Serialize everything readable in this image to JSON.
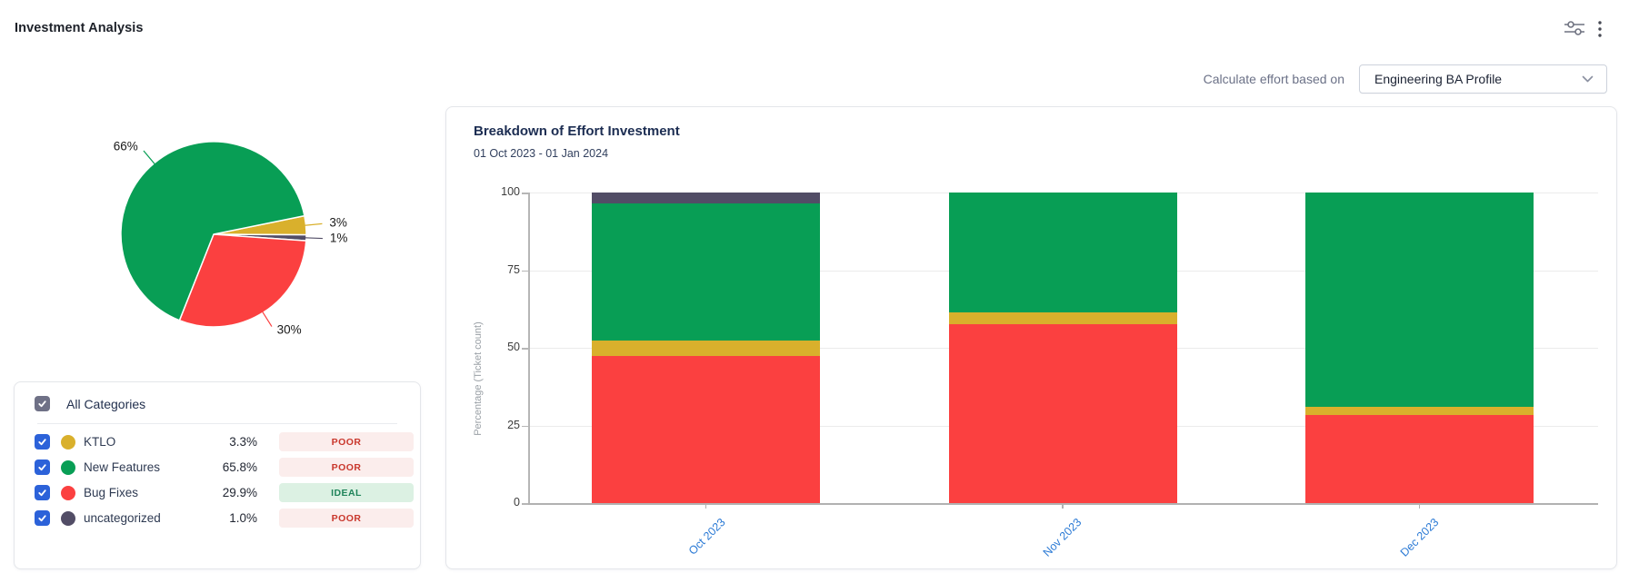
{
  "page": {
    "title": "Investment Analysis"
  },
  "header_icons": {
    "filter": "sliders-icon",
    "menu": "kebab-menu-icon"
  },
  "toolbar": {
    "label": "Calculate effort based on",
    "profile_value": "Engineering BA Profile"
  },
  "categories_panel": {
    "select_all": "All Categories",
    "select_all_checked": true,
    "rows": [
      {
        "name": "KTLO",
        "percent": "3.3%",
        "status": "POOR",
        "color": "#d9b02c",
        "checked": true
      },
      {
        "name": "New Features",
        "percent": "65.8%",
        "status": "POOR",
        "color": "#089e55",
        "checked": true
      },
      {
        "name": "Bug Fixes",
        "percent": "29.9%",
        "status": "IDEAL",
        "color": "#fb4040",
        "checked": true
      },
      {
        "name": "uncategorized",
        "percent": "1.0%",
        "status": "POOR",
        "color": "#524d66",
        "checked": true
      }
    ],
    "status_styles": {
      "POOR": {
        "bg": "#fbedec",
        "fg": "#c9372c"
      },
      "IDEAL": {
        "bg": "#dcf1e3",
        "fg": "#1f845a"
      }
    },
    "checkbox_colors": {
      "row": "#2c62d9",
      "select_all": "#6f7186"
    }
  },
  "chart_data": [
    {
      "type": "pie",
      "start_angle_deg": 78.5,
      "slices": [
        {
          "label": "KTLO",
          "value": 3.3,
          "display": "3%",
          "color": "#d9b02c"
        },
        {
          "label": "uncategorized",
          "value": 1.0,
          "display": "1%",
          "color": "#524d66"
        },
        {
          "label": "Bug Fixes",
          "value": 29.9,
          "display": "30%",
          "color": "#fb4040"
        },
        {
          "label": "New Features",
          "value": 65.8,
          "display": "66%",
          "color": "#089e55"
        }
      ]
    },
    {
      "type": "bar",
      "stacked": true,
      "title": "Breakdown of Effort Investment",
      "subtitle": "01 Oct 2023 - 01 Jan 2024",
      "ylabel": "Percentage (Ticket count)",
      "ylim": [
        0,
        100
      ],
      "yticks": [
        0,
        25,
        50,
        75,
        100
      ],
      "grid": true,
      "categories": [
        "Oct 2023",
        "Nov 2023",
        "Dec 2023"
      ],
      "series": [
        {
          "name": "Bug Fixes",
          "color": "#fb4040",
          "values": [
            47.5,
            57.7,
            28.4
          ]
        },
        {
          "name": "KTLO",
          "color": "#d9b02c",
          "values": [
            4.7,
            3.6,
            2.7
          ]
        },
        {
          "name": "New Features",
          "color": "#089e55",
          "values": [
            44.3,
            38.7,
            68.9
          ]
        },
        {
          "name": "uncategorized",
          "color": "#524d66",
          "values": [
            3.5,
            0,
            0
          ]
        }
      ],
      "xlabel_color": "#2b7ad5",
      "xlabel_rotation_deg": -45
    }
  ]
}
